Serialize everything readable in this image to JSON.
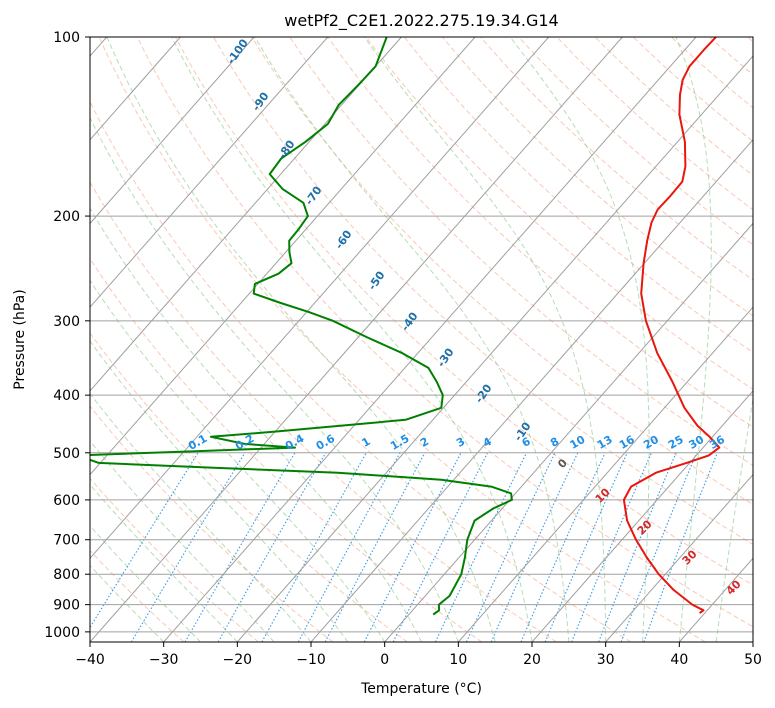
{
  "chart_data": {
    "type": "line",
    "title": "wetPf2_C2E1.2022.275.19.34.G14",
    "xlabel": "Temperature (°C)",
    "ylabel": "Pressure (hPa)",
    "xlim": [
      -40,
      50
    ],
    "ylim": [
      1040,
      100
    ],
    "y_scale": "log",
    "x_ticks": [
      "−40",
      "−30",
      "−20",
      "−10",
      "0",
      "10",
      "20",
      "30",
      "40",
      "50"
    ],
    "x_tick_values": [
      -40,
      -30,
      -20,
      -10,
      0,
      10,
      20,
      30,
      40,
      50
    ],
    "y_ticks": [
      "100",
      "200",
      "300",
      "400",
      "500",
      "600",
      "700",
      "800",
      "900",
      "1000"
    ],
    "y_tick_values": [
      100,
      200,
      300,
      400,
      500,
      600,
      700,
      800,
      900,
      1000
    ],
    "grid": true,
    "series": [
      {
        "role": "temperature",
        "color": "#e8160c",
        "points": [
          [
            930,
            39.3
          ],
          [
            920,
            39.5
          ],
          [
            900,
            37.3
          ],
          [
            850,
            33.0
          ],
          [
            800,
            29.1
          ],
          [
            750,
            25.5
          ],
          [
            700,
            21.9
          ],
          [
            650,
            18.4
          ],
          [
            600,
            15.5
          ],
          [
            570,
            14.9
          ],
          [
            540,
            16.6
          ],
          [
            520,
            19.6
          ],
          [
            505,
            21.7
          ],
          [
            490,
            22.2
          ],
          [
            470,
            19.6
          ],
          [
            450,
            16.6
          ],
          [
            420,
            12.7
          ],
          [
            380,
            8.0
          ],
          [
            340,
            2.5
          ],
          [
            300,
            -2.9
          ],
          [
            270,
            -6.8
          ],
          [
            240,
            -10.1
          ],
          [
            220,
            -12.3
          ],
          [
            205,
            -13.9
          ],
          [
            195,
            -14.6
          ],
          [
            185,
            -14.5
          ],
          [
            175,
            -14.6
          ],
          [
            165,
            -16.0
          ],
          [
            150,
            -19.0
          ],
          [
            135,
            -23.0
          ],
          [
            125,
            -25.3
          ],
          [
            118,
            -26.7
          ],
          [
            112,
            -27.4
          ],
          [
            105,
            -27.4
          ],
          [
            100,
            -27.3
          ]
        ]
      },
      {
        "role": "dewpoint",
        "color": "#008000",
        "points": [
          [
            935,
            3.3
          ],
          [
            920,
            3.6
          ],
          [
            900,
            2.9
          ],
          [
            870,
            3.3
          ],
          [
            800,
            2.3
          ],
          [
            750,
            0.8
          ],
          [
            700,
            -1.0
          ],
          [
            650,
            -2.3
          ],
          [
            620,
            -1.2
          ],
          [
            600,
            0.3
          ],
          [
            585,
            -0.6
          ],
          [
            570,
            -4.1
          ],
          [
            555,
            -11.7
          ],
          [
            540,
            -26.6
          ],
          [
            530,
            -44.0
          ],
          [
            520,
            -60.2
          ],
          [
            505,
            -64.0
          ],
          [
            497,
            -48.5
          ],
          [
            490,
            -35.4
          ],
          [
            483,
            -42.7
          ],
          [
            470,
            -48.1
          ],
          [
            460,
            -39.5
          ],
          [
            440,
            -23.7
          ],
          [
            420,
            -20.3
          ],
          [
            400,
            -21.6
          ],
          [
            380,
            -24.0
          ],
          [
            360,
            -26.8
          ],
          [
            340,
            -32.1
          ],
          [
            320,
            -38.7
          ],
          [
            300,
            -45.4
          ],
          [
            290,
            -49.7
          ],
          [
            280,
            -54.6
          ],
          [
            270,
            -59.4
          ],
          [
            260,
            -60.4
          ],
          [
            250,
            -58.4
          ],
          [
            240,
            -57.9
          ],
          [
            230,
            -59.5
          ],
          [
            220,
            -60.9
          ],
          [
            210,
            -61.0
          ],
          [
            200,
            -61.3
          ],
          [
            190,
            -63.5
          ],
          [
            180,
            -68.0
          ],
          [
            170,
            -71.5
          ],
          [
            160,
            -71.8
          ],
          [
            150,
            -70.5
          ],
          [
            140,
            -69.6
          ],
          [
            130,
            -70.4
          ],
          [
            120,
            -70.1
          ],
          [
            112,
            -70.0
          ],
          [
            100,
            -72.0
          ]
        ]
      }
    ],
    "dry_adiabat_labels": [
      "-100",
      "-90",
      "-80",
      "-70",
      "-60",
      "-50",
      "-40",
      "-30",
      "-20",
      "-10"
    ],
    "dry_adiabat_label_values": [
      -100,
      -90,
      -80,
      -70,
      -60,
      -50,
      -40,
      -30,
      -20,
      -10
    ],
    "mixing_ratio_labels": [
      "0.1",
      "0.2",
      "0.4",
      "0.6",
      "1",
      "1.5",
      "2",
      "3",
      "4",
      "6",
      "8",
      "10",
      "13",
      "16",
      "20",
      "25",
      "30",
      "36"
    ],
    "mixing_ratio_values": [
      0.1,
      0.2,
      0.4,
      0.6,
      1,
      1.5,
      2,
      3,
      4,
      6,
      8,
      10,
      13,
      16,
      20,
      25,
      30,
      36
    ],
    "moist_adiabat_labels": [
      "0",
      "10",
      "20",
      "30",
      "40"
    ],
    "moist_adiabat_values": [
      0,
      10,
      20,
      30,
      40
    ],
    "colors": {
      "temperature": "#e8160c",
      "dewpoint": "#008000",
      "isotherm": "#a0a0a0",
      "isobar": "#a0a0a0",
      "dry_adiabat": "#f4a582",
      "moist_adiabat": "#8fc98f",
      "mixing_ratio": "#1f8fe6",
      "dry_adiabat_label": "#1f6fa8",
      "mixing_ratio_label": "#1f8fe6",
      "moist_adiabat_label": "#d62728",
      "zero_moist_label": "#555555",
      "saturation_curve": "#c8b090"
    }
  }
}
